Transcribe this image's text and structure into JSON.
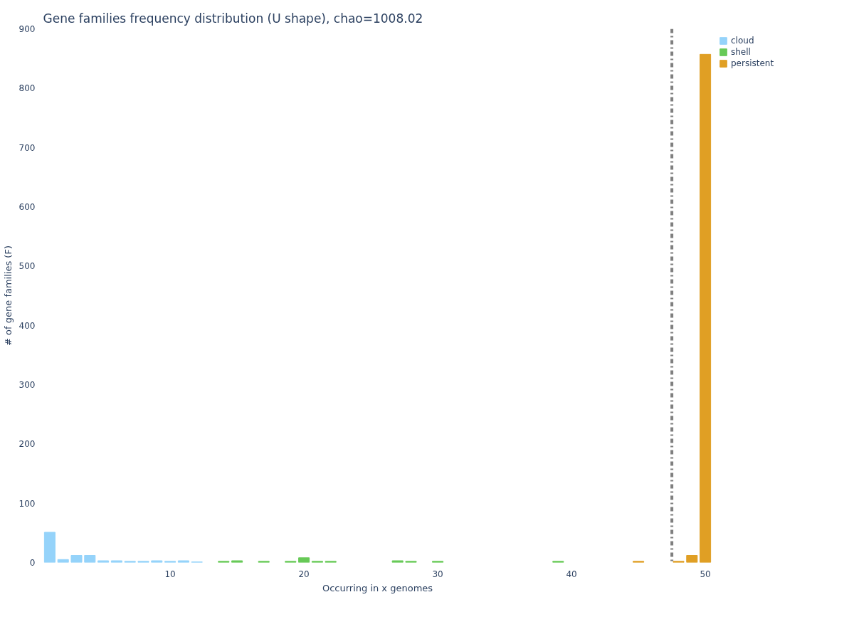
{
  "chart_data": {
    "type": "bar",
    "title": "Gene families frequency distribution (U shape), chao=1008.02",
    "xlabel": "Occurring in x genomes",
    "ylabel": "# of gene families (F)",
    "series": [
      {
        "name": "cloud",
        "color": "#95d3fa",
        "x": [
          1,
          2,
          3,
          4,
          5,
          6,
          7,
          8,
          9,
          10,
          11,
          12
        ],
        "values": [
          51,
          5,
          12,
          12,
          3,
          3,
          2,
          2,
          3,
          2,
          3,
          1
        ]
      },
      {
        "name": "shell",
        "color": "#67c957",
        "x": [
          14,
          15,
          17,
          19,
          20,
          21,
          22,
          27,
          28,
          30,
          39
        ],
        "values": [
          2,
          3,
          2,
          2,
          8,
          2,
          2,
          3,
          2,
          2,
          2
        ]
      },
      {
        "name": "persistent",
        "color": "#e09f24",
        "x": [
          45,
          48,
          49,
          50
        ],
        "values": [
          2,
          2,
          12,
          857
        ]
      }
    ],
    "xlim": [
      0.5,
      50.5
    ],
    "xticks": [
      10,
      20,
      30,
      40,
      50
    ],
    "ylim": [
      0,
      900
    ],
    "yticks": [
      0,
      100,
      200,
      300,
      400,
      500,
      600,
      700,
      800,
      900
    ],
    "ref_lines": [
      {
        "axis": "x",
        "value": 47.5,
        "color": "#7f7f7f",
        "line_style": "dashdot"
      }
    ],
    "grid": false,
    "legend": "top right"
  }
}
